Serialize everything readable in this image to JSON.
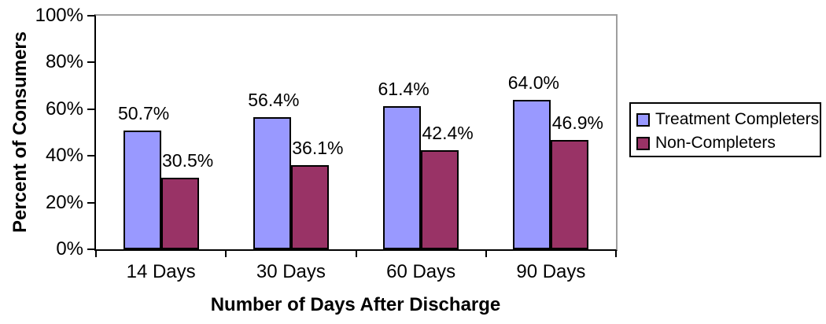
{
  "chart_data": {
    "type": "bar",
    "categories": [
      "14 Days",
      "30 Days",
      "60 Days",
      "90 Days"
    ],
    "series": [
      {
        "name": "Treatment Completers",
        "color": "#9999FF",
        "values": [
          50.7,
          56.4,
          61.4,
          64.0
        ],
        "labels": [
          "50.7%",
          "56.4%",
          "61.4%",
          "64.0%"
        ]
      },
      {
        "name": "Non-Completers",
        "color": "#993366",
        "values": [
          30.5,
          36.1,
          42.4,
          46.9
        ],
        "labels": [
          "30.5%",
          "36.1%",
          "42.4%",
          "46.9%"
        ]
      }
    ],
    "title": "",
    "xlabel": "Number of Days After Discharge",
    "ylabel": "Percent of Consumers",
    "ylim": [
      0,
      100
    ],
    "yticks": [
      0,
      20,
      40,
      60,
      80,
      100
    ],
    "ytick_labels": [
      "0%",
      "20%",
      "40%",
      "60%",
      "80%",
      "100%"
    ],
    "grid": false,
    "legend_position": "right"
  },
  "colors": {
    "axis": "#000000",
    "plot_border_gray": "#9e9e9e",
    "background": "#FFFFFF",
    "series1": "#9999FF",
    "series2": "#993366"
  }
}
